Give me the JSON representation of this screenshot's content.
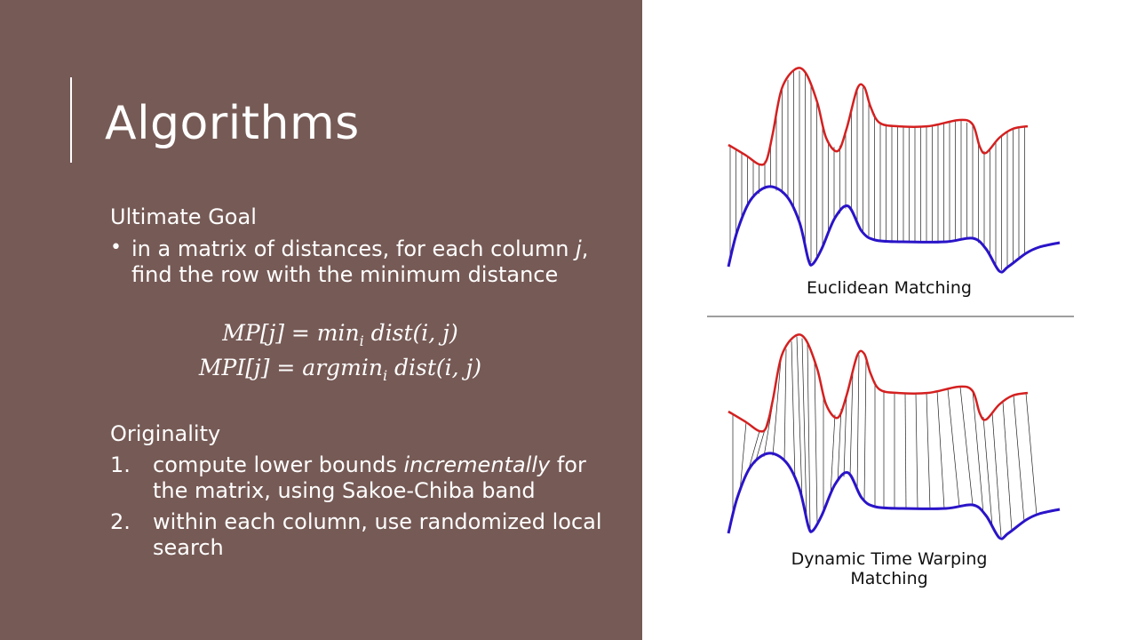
{
  "slide": {
    "title": "Algorithms",
    "goal_heading": "Ultimate Goal",
    "goal_bullet_pre": "in a matrix of distances, for each column ",
    "goal_bullet_var": "j",
    "goal_bullet_post": ", find the row with the minimum distance",
    "formula_1": "MP[j] = min",
    "formula_1_sub": "i",
    "formula_1_post": " dist(i, j)",
    "formula_2": "MPI[j] = argmin",
    "formula_2_sub": "i",
    "formula_2_post": " dist(i, j)",
    "orig_heading": "Originality",
    "orig_items": [
      {
        "num": "1.",
        "pre": "compute lower bounds ",
        "em": "incrementally",
        "post": " for the matrix, using Sakoe-Chiba band"
      },
      {
        "num": "2.",
        "pre": "within each column, use randomized local search",
        "em": "",
        "post": ""
      }
    ]
  },
  "figure": {
    "top_caption": "Euclidean Matching",
    "bottom_caption": "Dynamic Time Warping Matching",
    "colors": {
      "red_series": "#d42020",
      "blue_series": "#2a14c8",
      "panel_bg": "#765a55"
    }
  }
}
